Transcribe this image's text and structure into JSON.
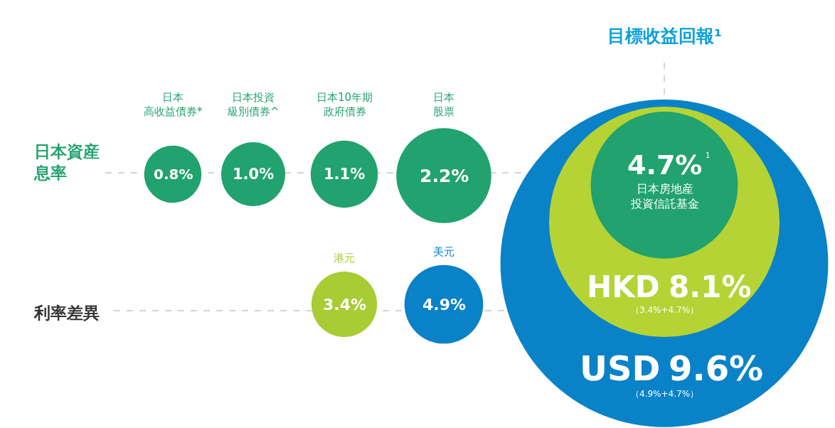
{
  "chart_data": {
    "type": "other",
    "title": "目標收益回報¹",
    "categories": [
      "日本高收益債券*",
      "日本投資級別債券^",
      "日本10年期政府債券",
      "日本股票",
      "港元",
      "美元",
      "USD",
      "HKD",
      "日本房地産投資信託基金"
    ],
    "values": [
      0.8,
      1.0,
      1.1,
      2.2,
      3.4,
      4.9,
      9.6,
      8.1,
      4.7
    ],
    "value_labels": [
      "0.8%",
      "1.0%",
      "1.1%",
      "2.2%",
      "3.4%",
      "4.9%",
      "9.6%",
      "8.1%",
      "4.7%"
    ],
    "colors": [
      "#21a26e",
      "#21a26e",
      "#21a26e",
      "#21a26e",
      "#a8cc34",
      "#0a82c8",
      "#0a82c8",
      "#b5d334",
      "#21a26e"
    ],
    "annotations": [
      "日本資産息率",
      "利率差異",
      "（3.4%+4.7%）",
      "（4.9%+4.7%）",
      "1"
    ]
  }
}
